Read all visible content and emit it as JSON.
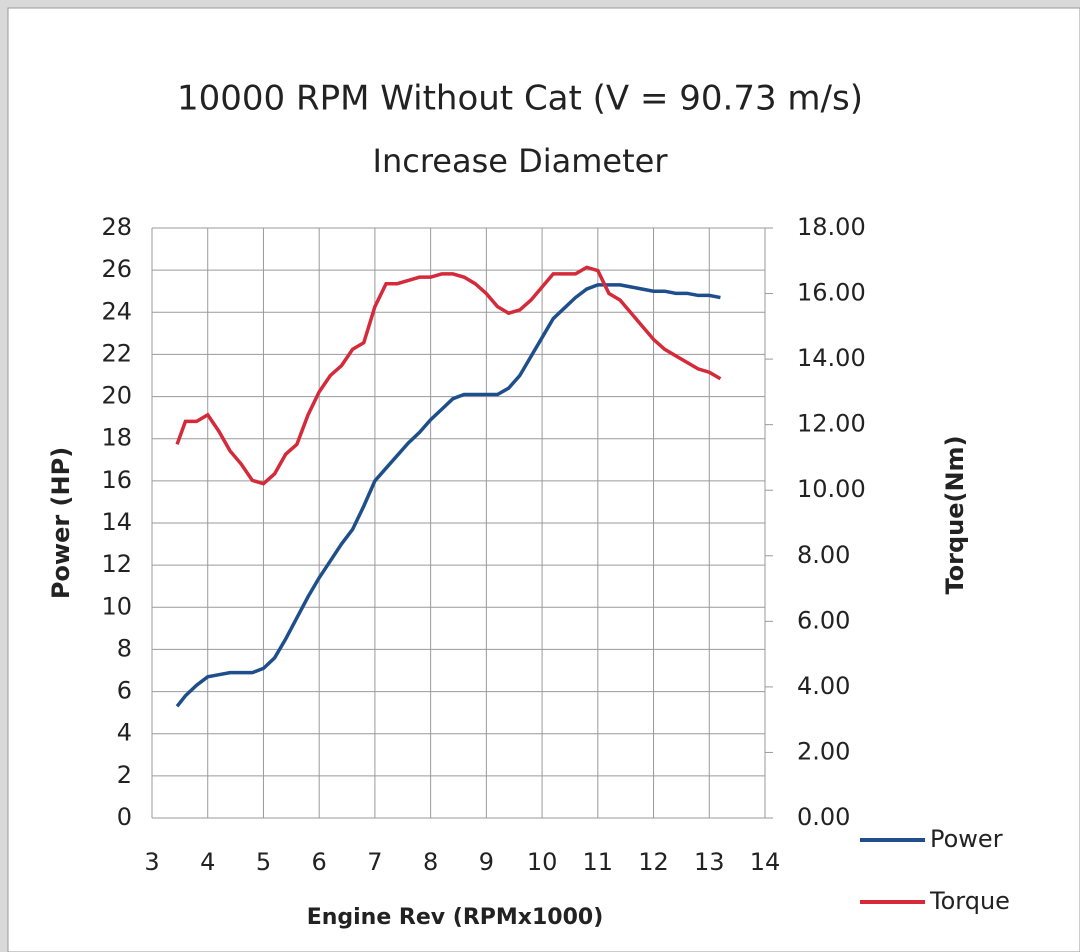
{
  "chart_data": {
    "type": "line",
    "title": "10000 RPM Without Cat (V = 90.73 m/s)",
    "subtitle": "Increase Diameter",
    "x_label": "Engine Rev (RPMx1000)",
    "y_label": "Power (HP)",
    "y2_label": "Torque(Nm)",
    "grid": true,
    "legend": "right",
    "x": [
      3.45,
      3.6,
      3.8,
      4.0,
      4.2,
      4.4,
      4.6,
      4.8,
      5.0,
      5.2,
      5.4,
      5.6,
      5.8,
      6.0,
      6.2,
      6.4,
      6.6,
      6.8,
      7.0,
      7.2,
      7.4,
      7.6,
      7.8,
      8.0,
      8.2,
      8.4,
      8.6,
      8.8,
      9.0,
      9.2,
      9.4,
      9.6,
      9.8,
      10.0,
      10.2,
      10.4,
      10.6,
      10.8,
      11.0,
      11.2,
      11.4,
      11.6,
      11.8,
      12.0,
      12.2,
      12.4,
      12.6,
      12.8,
      13.0,
      13.2
    ],
    "series": [
      {
        "name": "Power",
        "color": "#1f4e8c",
        "axis": "y",
        "values": [
          5.3,
          5.8,
          6.3,
          6.7,
          6.8,
          6.9,
          6.9,
          6.9,
          7.1,
          7.6,
          8.5,
          9.5,
          10.5,
          11.4,
          12.2,
          13.0,
          13.7,
          14.8,
          16.0,
          16.6,
          17.2,
          17.8,
          18.3,
          18.9,
          19.4,
          19.9,
          20.1,
          20.1,
          20.1,
          20.1,
          20.4,
          21.0,
          21.9,
          22.8,
          23.7,
          24.2,
          24.7,
          25.1,
          25.3,
          25.3,
          25.3,
          25.2,
          25.1,
          25.0,
          25.0,
          24.9,
          24.9,
          24.8,
          24.8,
          24.7
        ]
      },
      {
        "name": "Torque",
        "color": "#d42a3a",
        "axis": "y2",
        "values": [
          11.4,
          12.1,
          12.1,
          12.3,
          11.8,
          11.2,
          10.8,
          10.3,
          10.2,
          10.5,
          11.1,
          11.4,
          12.3,
          13.0,
          13.5,
          13.8,
          14.3,
          14.5,
          15.6,
          16.3,
          16.3,
          16.4,
          16.5,
          16.5,
          16.6,
          16.6,
          16.5,
          16.3,
          16.0,
          15.6,
          15.4,
          15.5,
          15.8,
          16.2,
          16.6,
          16.6,
          16.6,
          16.8,
          16.7,
          16.0,
          15.8,
          15.4,
          15.0,
          14.6,
          14.3,
          14.1,
          13.9,
          13.7,
          13.6,
          13.4
        ]
      }
    ],
    "xlim": [
      3,
      14
    ],
    "xticks": [
      3,
      4,
      5,
      6,
      7,
      8,
      9,
      10,
      11,
      12,
      13,
      14
    ],
    "ylim": [
      0,
      28
    ],
    "yticks": [
      0,
      2,
      4,
      6,
      8,
      10,
      12,
      14,
      16,
      18,
      20,
      22,
      24,
      26,
      28
    ],
    "y2lim": [
      0,
      18
    ],
    "y2ticks": [
      {
        "value": 0,
        "label": "0.00"
      },
      {
        "value": 2,
        "label": "2.00"
      },
      {
        "value": 4,
        "label": "4.00"
      },
      {
        "value": 6,
        "label": "6.00"
      },
      {
        "value": 8,
        "label": "8.00"
      },
      {
        "value": 10,
        "label": "10.00"
      },
      {
        "value": 12,
        "label": "12.00"
      },
      {
        "value": 14,
        "label": "14.00"
      },
      {
        "value": 16,
        "label": "16.00"
      },
      {
        "value": 18,
        "label": "18.00"
      }
    ]
  }
}
